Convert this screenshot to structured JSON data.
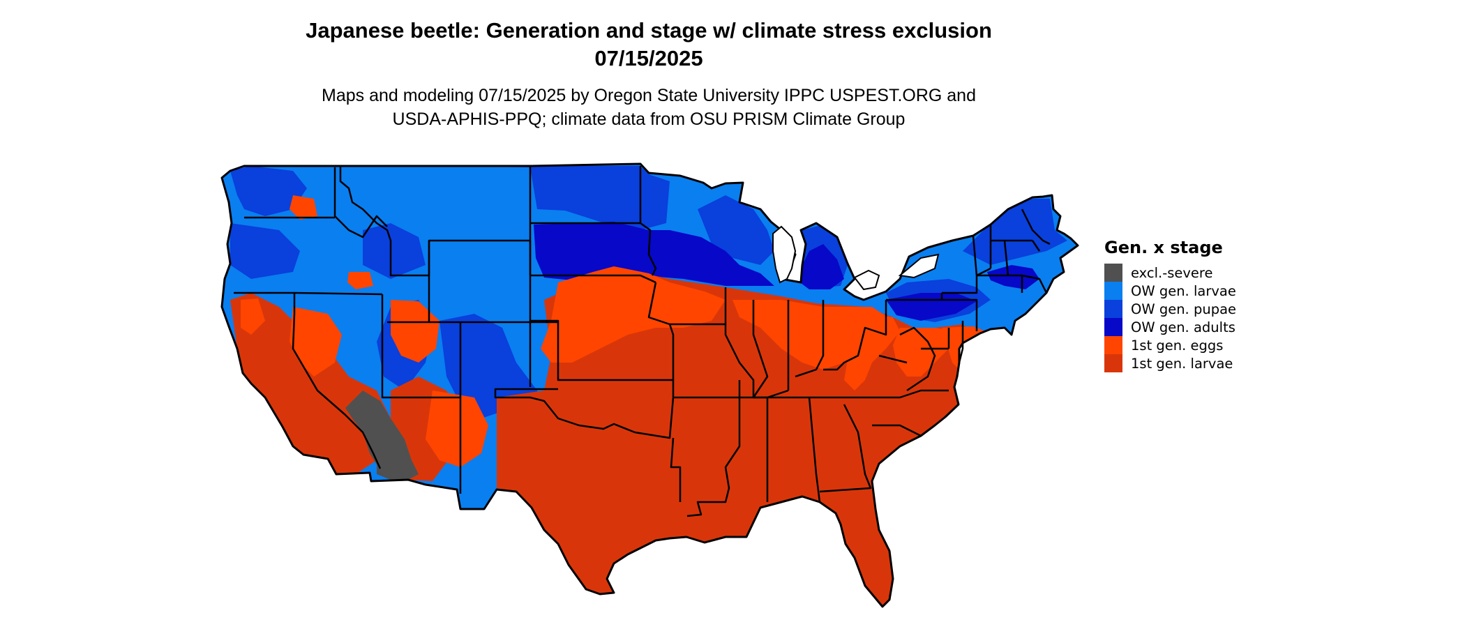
{
  "map": {
    "title": "Japanese beetle: Generation and stage w/ climate stress exclusion",
    "date": "07/15/2025",
    "subtitle_line1": "Maps and modeling 07/15/2025 by Oregon State University IPPC USPEST.ORG and",
    "subtitle_line2": "USDA-APHIS-PPQ; climate data from OSU PRISM Climate Group"
  },
  "legend": {
    "title": "Gen. x stage",
    "items": [
      {
        "label": "excl.-severe",
        "color": "#505050"
      },
      {
        "label": "OW gen. larvae",
        "color": "#0a7ff0"
      },
      {
        "label": "OW gen. pupae",
        "color": "#0a40dc"
      },
      {
        "label": "OW gen. adults",
        "color": "#0808c8"
      },
      {
        "label": "1st gen. eggs",
        "color": "#ff4500"
      },
      {
        "label": "1st gen. larvae",
        "color": "#d8360a"
      }
    ]
  },
  "map_colors": {
    "state_border": "#000000",
    "water": "#ffffff"
  }
}
